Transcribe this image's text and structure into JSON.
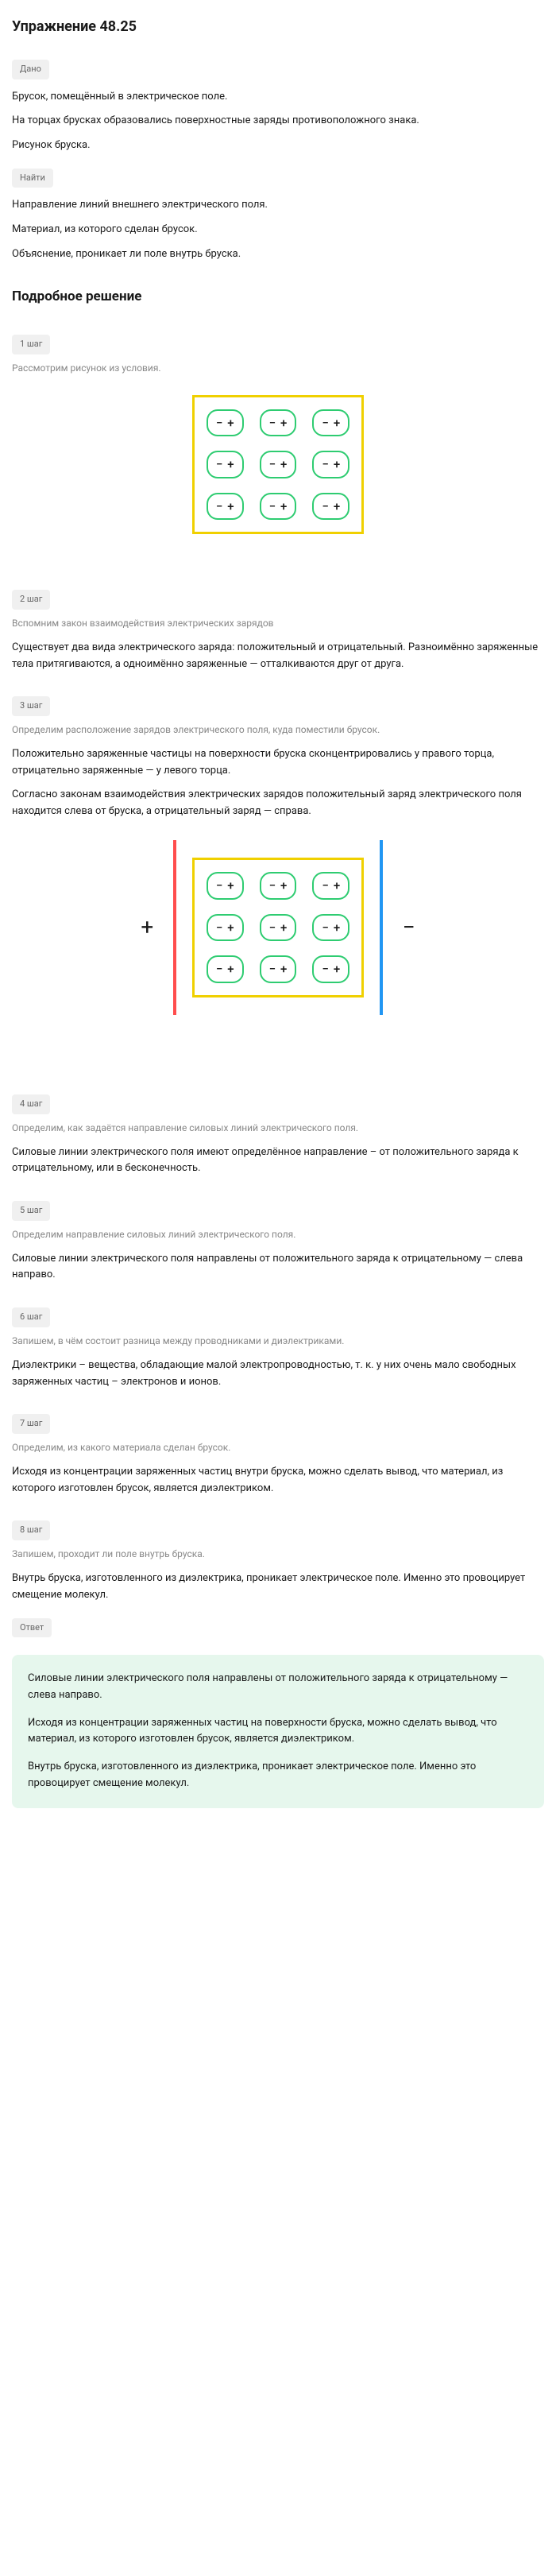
{
  "title": "Упражнение 48.25",
  "given_badge": "Дано",
  "given": {
    "line1": "Брусок, помещённый в электрическое поле.",
    "line2": "На торцах брусках образовались поверхностные заряды противоположного знака.",
    "line3": "Рисунок бруска."
  },
  "find_badge": "Найти",
  "find": {
    "line1": "Направление линий внешнего электрического поля.",
    "line2": "Материал, из которого сделан брусок.",
    "line3": "Объяснение, проникает ли поле внутрь бруска."
  },
  "solution_title": "Подробное решение",
  "steps": [
    {
      "badge": "1 шаг",
      "desc": "Рассмотрим рисунок из условия.",
      "body": []
    },
    {
      "badge": "2 шаг",
      "desc": "Вспомним закон взаимодействия электрических зарядов",
      "body": [
        "Существует два вида электрического заряда: положительный и отрицательный. Разноимённо заряженные тела притягиваются, а одноимённо заряженные — отталкиваются друг от друга."
      ]
    },
    {
      "badge": "3 шаг",
      "desc": "Определим расположение зарядов электрического поля, куда поместили брусок.",
      "body": [
        "Положительно заряженные частицы на поверхности бруска сконцентрировались у правого торца, отрицательно заряженные — у левого торца.",
        "Согласно законам взаимодействия электрических зарядов положительный заряд электрического поля находится слева от бруска, а отрицательный заряд — справа."
      ]
    },
    {
      "badge": "4 шаг",
      "desc": "Определим, как задаётся направление силовых линий электрического поля.",
      "body": [
        "Силовые линии электрического поля имеют определённое направление – от положительного заряда к отрицательному, или в бесконечность."
      ]
    },
    {
      "badge": "5 шаг",
      "desc": "Определим направление силовых линий электрического поля.",
      "body": [
        "Силовые линии электрического поля направлены от положительного заряда к отрицательному — слева направо."
      ]
    },
    {
      "badge": "6 шаг",
      "desc": "Запишем, в чём состоит разница между проводниками и диэлектриками.",
      "body": [
        "Диэлектрики – вещества, обладающие малой электропроводностью, т. к. у них очень мало свободных заряженных частиц – электронов и ионов."
      ]
    },
    {
      "badge": "7 шаг",
      "desc": "Определим, из какого материала сделан брусок.",
      "body": [
        "Исходя из концентрации заряженных частиц внутри бруска, можно сделать вывод, что материал, из которого изготовлен брусок, является диэлектриком."
      ]
    },
    {
      "badge": "8 шаг",
      "desc": "Запишем, проходит ли поле внутрь бруска.",
      "body": [
        "Внутрь бруска, изготовленного из диэлектрика, проникает электрическое поле. Именно это провоцирует смещение молекул."
      ]
    }
  ],
  "answer_badge": "Ответ",
  "answer": {
    "line1": "Силовые линии электрического поля направлены от положительного заряда к отрицательному — слева направо.",
    "line2": "Исходя из концентрации заряженных частиц на поверхности бруска, можно сделать вывод, что материал, из которого изготовлен брусок, является диэлектриком.",
    "line3": "Внутрь бруска, изготовленного из диэлектрика, проникает электрическое поле. Именно это провоцирует смещение молекул."
  },
  "diagram": {
    "bar_border_color": "#f0d000",
    "cell_border_color": "#2ecc71",
    "plate_left_color": "#ff4d4d",
    "plate_right_color": "#2196f3",
    "minus": "−",
    "plus": "+",
    "plus_label": "+",
    "minus_label": "−"
  }
}
